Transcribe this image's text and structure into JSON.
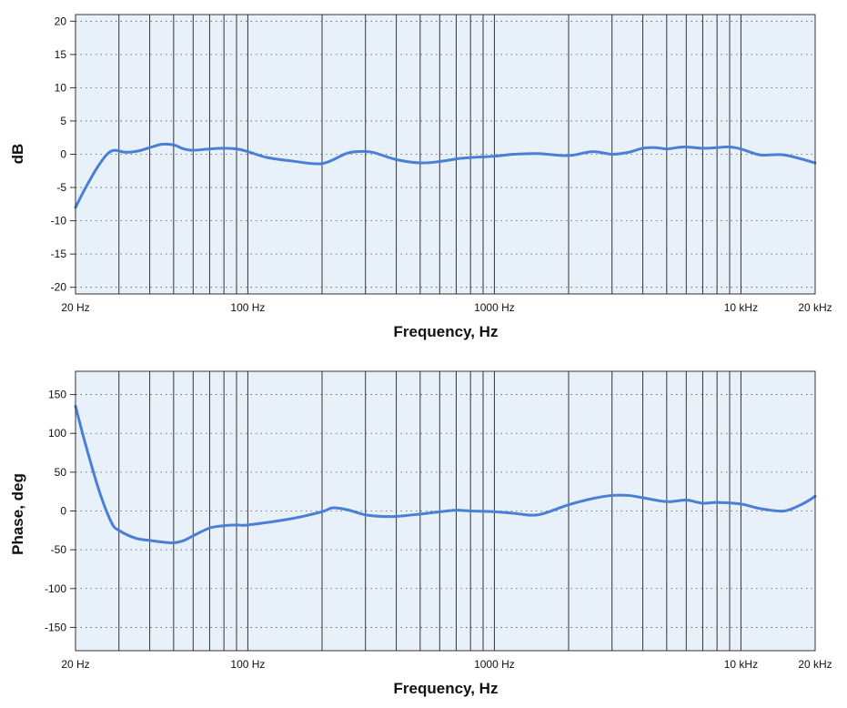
{
  "colors": {
    "plot_background": "#e8f0fa",
    "frame": "#333333",
    "vertical_grid": "#333333",
    "horizontal_grid": "#555555",
    "series_line": "#4a7fd6"
  },
  "chart_data": [
    {
      "type": "line",
      "title": "",
      "xlabel": "Frequency, Hz",
      "ylabel": "dB",
      "x_scale": "log",
      "xlim": [
        20,
        20000
      ],
      "ylim": [
        -21,
        21
      ],
      "grid": true,
      "yticks": [
        20,
        15,
        10,
        5,
        0,
        -5,
        -10,
        -15,
        -20
      ],
      "ytick_labels": [
        "20",
        "15",
        "10",
        "5",
        "0",
        "-5",
        "-10",
        "-15",
        "-20"
      ],
      "xticks": [
        20,
        100,
        1000,
        10000,
        20000
      ],
      "xtick_labels": [
        "20 Hz",
        "100 Hz",
        "1000 Hz",
        "10 kHz",
        "20 kHz"
      ],
      "series": [
        {
          "x": [
            20,
            22,
            25,
            28,
            32,
            36,
            40,
            45,
            50,
            55,
            60,
            70,
            80,
            90,
            100,
            120,
            150,
            200,
            250,
            280,
            320,
            400,
            500,
            600,
            700,
            800,
            1000,
            1200,
            1500,
            2000,
            2500,
            3000,
            3500,
            4000,
            4500,
            5000,
            5500,
            6000,
            7000,
            8000,
            9000,
            10000,
            12000,
            15000,
            20000
          ],
          "y": [
            -8,
            -5,
            -1.5,
            0.5,
            0.3,
            0.5,
            1.0,
            1.5,
            1.4,
            0.8,
            0.6,
            0.8,
            0.9,
            0.8,
            0.4,
            -0.5,
            -1.0,
            -1.4,
            0.1,
            0.4,
            0.3,
            -0.8,
            -1.3,
            -1.1,
            -0.7,
            -0.5,
            -0.3,
            0.0,
            0.1,
            -0.2,
            0.4,
            0.0,
            0.3,
            0.9,
            1.0,
            0.8,
            1.0,
            1.1,
            0.9,
            1.0,
            1.1,
            0.8,
            -0.1,
            -0.1,
            -1.3
          ]
        }
      ]
    },
    {
      "type": "line",
      "title": "",
      "xlabel": "Frequency, Hz",
      "ylabel": "Phase, deg",
      "x_scale": "log",
      "xlim": [
        20,
        20000
      ],
      "ylim": [
        -180,
        180
      ],
      "grid": true,
      "yticks": [
        150,
        100,
        50,
        0,
        -50,
        -100,
        -150
      ],
      "ytick_labels": [
        "150",
        "100",
        "50",
        "0",
        "-50",
        "-100",
        "-150"
      ],
      "xticks": [
        20,
        100,
        1000,
        10000,
        20000
      ],
      "xtick_labels": [
        "20 Hz",
        "100 Hz",
        "1000 Hz",
        "10 kHz",
        "20 kHz"
      ],
      "series": [
        {
          "x": [
            20,
            22,
            25,
            28,
            30,
            35,
            40,
            45,
            50,
            55,
            60,
            70,
            80,
            90,
            100,
            150,
            200,
            220,
            250,
            300,
            350,
            400,
            500,
            600,
            700,
            800,
            1000,
            1200,
            1500,
            2000,
            2500,
            3000,
            3500,
            4000,
            5000,
            6000,
            7000,
            8000,
            10000,
            12000,
            15000,
            18000,
            20000
          ],
          "y": [
            135,
            85,
            25,
            -15,
            -25,
            -35,
            -38,
            -40,
            -41,
            -38,
            -32,
            -22,
            -19,
            -18,
            -18,
            -10,
            -1,
            4,
            2,
            -5,
            -7,
            -7,
            -4,
            -1,
            1,
            0,
            -1,
            -3,
            -5,
            8,
            16,
            20,
            20,
            17,
            12,
            14,
            10,
            11,
            9,
            3,
            0,
            10,
            19
          ]
        }
      ]
    }
  ]
}
